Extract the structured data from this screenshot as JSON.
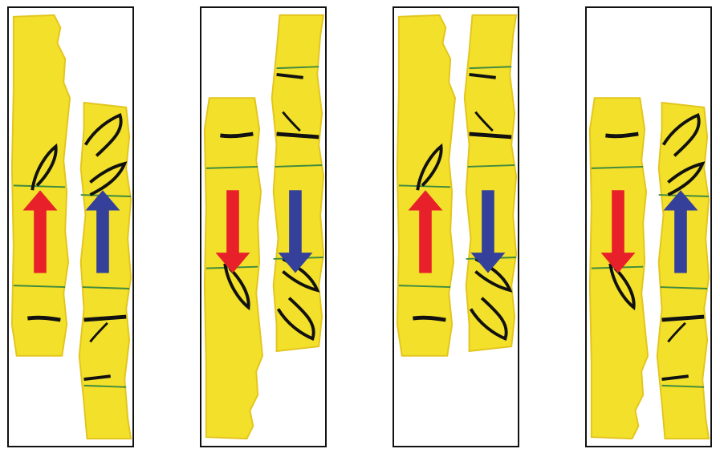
{
  "colors": {
    "paper": "#f2e02a",
    "paper_shade": "#e3c51f",
    "ink": "#111111",
    "ruled_line": "#3f8a3f",
    "red_arrow": "#e8202a",
    "blue_arrow": "#35409a",
    "frame": "#111111"
  },
  "panels": [
    {
      "left_strip": "original",
      "right_strip": "original",
      "left_arrow": "up",
      "right_arrow": "up"
    },
    {
      "left_strip": "flipped",
      "right_strip": "flipped",
      "left_arrow": "down",
      "right_arrow": "down"
    },
    {
      "left_strip": "original",
      "right_strip": "flipped",
      "left_arrow": "up",
      "right_arrow": "down"
    },
    {
      "left_strip": "flipped",
      "right_strip": "original",
      "left_arrow": "down",
      "right_arrow": "up"
    }
  ]
}
